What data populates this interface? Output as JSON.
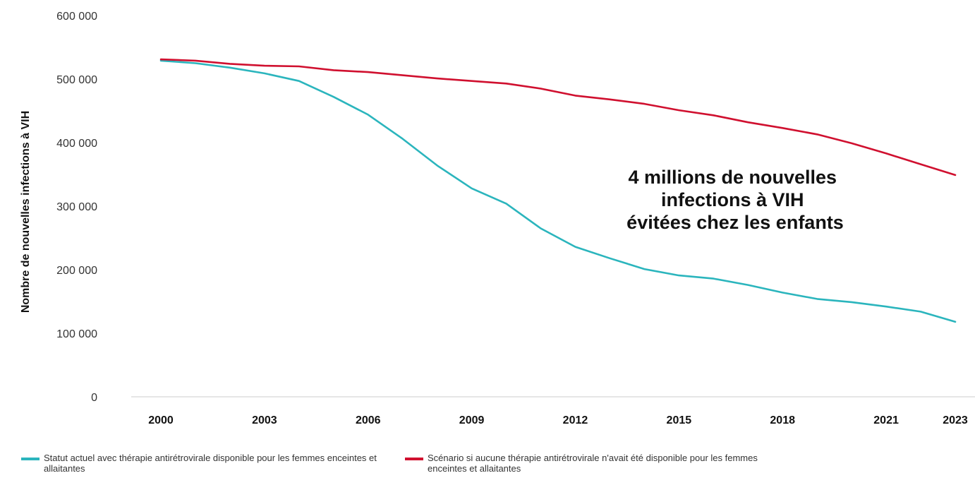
{
  "colors": {
    "series_current": "#2bb5bd",
    "series_scenario": "#d0102f",
    "axis": "#cccccc"
  },
  "chart_data": {
    "type": "line",
    "title": "",
    "xlabel": "",
    "ylabel": "Nombre de nouvelles infections à VIH",
    "ylim": [
      0,
      600000
    ],
    "xlim": [
      2000,
      2023
    ],
    "yticks": [
      0,
      100000,
      200000,
      300000,
      400000,
      500000,
      600000
    ],
    "ytick_labels": [
      "0",
      "100 000",
      "200 000",
      "300 000",
      "400 000",
      "500 000",
      "600 000"
    ],
    "xticks": [
      2000,
      2003,
      2006,
      2009,
      2012,
      2015,
      2018,
      2021,
      2023
    ],
    "xtick_labels": [
      "2000",
      "2003",
      "2006",
      "2009",
      "2012",
      "2015",
      "2018",
      "2021",
      "2023"
    ],
    "grid": false,
    "legend_position": "bottom",
    "annotation": [
      "4 millions de nouvelles",
      "infections à VIH",
      "évitées chez les enfants"
    ],
    "x": [
      2000,
      2001,
      2002,
      2003,
      2004,
      2005,
      2006,
      2007,
      2008,
      2009,
      2010,
      2011,
      2012,
      2013,
      2014,
      2015,
      2016,
      2017,
      2018,
      2019,
      2020,
      2021,
      2022,
      2023
    ],
    "series": [
      {
        "key": "current",
        "name": "Statut actuel avec thérapie antirétrovirale disponible pour les femmes enceintes et allaitantes",
        "values": [
          529000,
          525000,
          518000,
          509000,
          497000,
          472000,
          444000,
          406000,
          364000,
          328000,
          304000,
          265000,
          236000,
          218000,
          201000,
          191000,
          186000,
          176000,
          164000,
          154000,
          149000,
          142000,
          134000,
          118000
        ]
      },
      {
        "key": "scenario",
        "name": "Scénario si aucune thérapie antirétrovirale n'avait été disponible pour les femmes enceintes et allaitantes",
        "values": [
          531000,
          529000,
          524000,
          521000,
          520000,
          514000,
          511000,
          506000,
          501000,
          497000,
          493000,
          485000,
          474000,
          468000,
          461000,
          451000,
          443000,
          432000,
          423000,
          413000,
          399000,
          383000,
          366000,
          349000
        ]
      }
    ]
  }
}
